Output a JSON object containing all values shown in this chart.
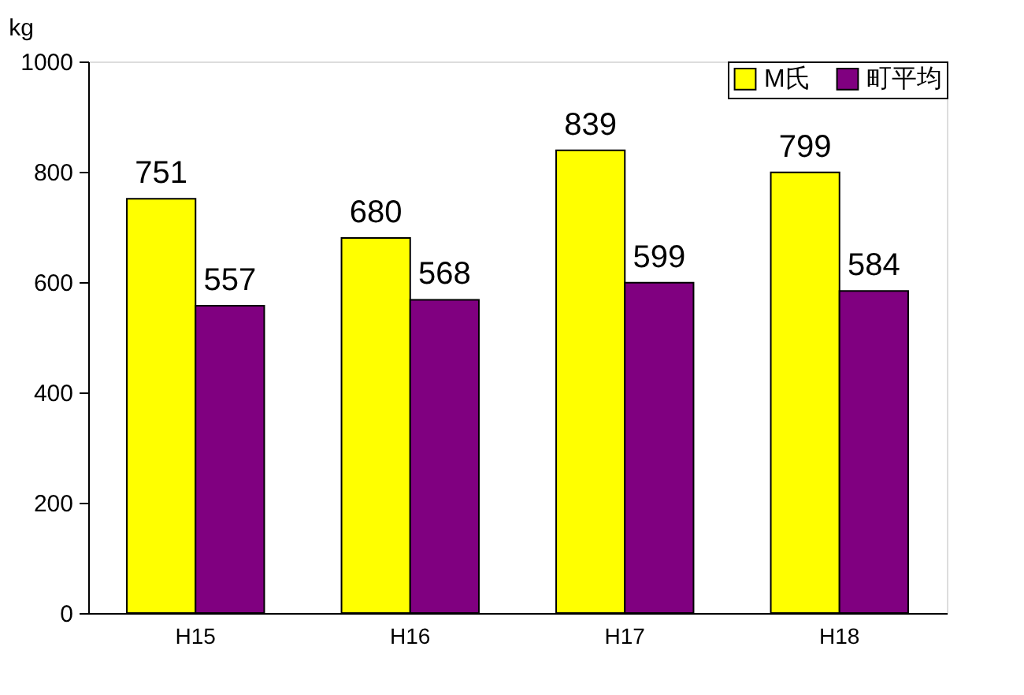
{
  "chart_data": {
    "type": "bar",
    "ylabel": "kg",
    "categories": [
      "H15",
      "H16",
      "H17",
      "H18"
    ],
    "series": [
      {
        "name": "M氏",
        "color": "#ffff00",
        "values": [
          751,
          680,
          839,
          799
        ]
      },
      {
        "name": "町平均",
        "color": "#800080",
        "values": [
          557,
          568,
          599,
          584
        ]
      }
    ],
    "ylim": [
      0,
      1000
    ],
    "yticks": [
      0,
      200,
      400,
      600,
      800,
      1000
    ],
    "grid": false,
    "legend": "top right",
    "data_labels": true
  }
}
